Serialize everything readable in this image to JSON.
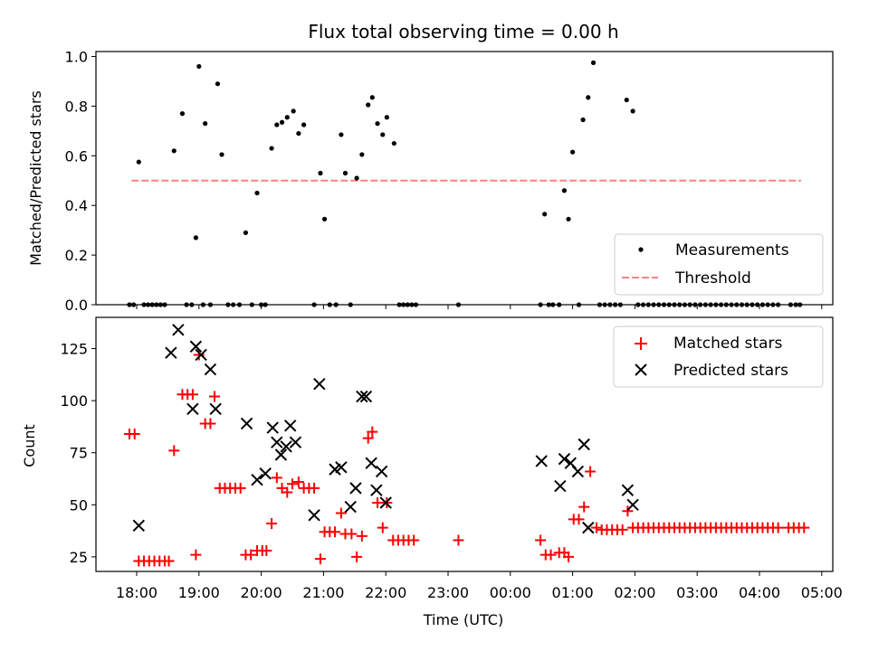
{
  "figure": {
    "title": "Flux total observing time = 0.00 h",
    "colors": {
      "measure": "#000000",
      "threshold": "#ff8080",
      "matched": "#ff0000",
      "predicted": "#000000"
    }
  },
  "chart_data": [
    {
      "type": "scatter",
      "title": "Flux total observing time = 0.00 h",
      "xlabel": "",
      "ylabel": "Matched/Predicted stars",
      "ylim": [
        0,
        1.02
      ],
      "yticks": [
        0.0,
        0.2,
        0.4,
        0.6,
        0.8,
        1.0
      ],
      "xticks": [
        "18:00",
        "19:00",
        "20:00",
        "21:00",
        "22:00",
        "23:00",
        "00:00",
        "01:00",
        "02:00",
        "03:00",
        "04:00",
        "05:00"
      ],
      "legend_position": "bottom-right",
      "legend": [
        "Measurements",
        "Threshold"
      ],
      "threshold": {
        "name": "Threshold",
        "value": 0.5,
        "x_start": "17:55",
        "x_end": "04:40"
      },
      "series": [
        {
          "name": "Measurements",
          "points": [
            [
              "17:53",
              0
            ],
            [
              "17:57",
              0
            ],
            [
              "18:02",
              0.575
            ],
            [
              "18:07",
              0
            ],
            [
              "18:11",
              0
            ],
            [
              "18:15",
              0
            ],
            [
              "18:19",
              0
            ],
            [
              "18:23",
              0
            ],
            [
              "18:27",
              0
            ],
            [
              "18:36",
              0.62
            ],
            [
              "18:44",
              0.77
            ],
            [
              "18:48",
              0
            ],
            [
              "18:53",
              0
            ],
            [
              "18:57",
              0.27
            ],
            [
              "19:00",
              0.96
            ],
            [
              "19:04",
              0
            ],
            [
              "19:06",
              0.73
            ],
            [
              "19:11",
              0
            ],
            [
              "19:18",
              0.89
            ],
            [
              "19:22",
              0.605
            ],
            [
              "19:28",
              0
            ],
            [
              "19:33",
              0
            ],
            [
              "19:39",
              0
            ],
            [
              "19:45",
              0.29
            ],
            [
              "19:51",
              0
            ],
            [
              "19:56",
              0.45
            ],
            [
              "20:00",
              0
            ],
            [
              "20:04",
              0
            ],
            [
              "20:10",
              0.63
            ],
            [
              "20:15",
              0.725
            ],
            [
              "20:20",
              0.735
            ],
            [
              "20:25",
              0.755
            ],
            [
              "20:31",
              0.78
            ],
            [
              "20:36",
              0.69
            ],
            [
              "20:41",
              0.725
            ],
            [
              "20:51",
              0
            ],
            [
              "20:57",
              0.53
            ],
            [
              "21:01",
              0.345
            ],
            [
              "21:06",
              0
            ],
            [
              "21:12",
              0
            ],
            [
              "21:17",
              0.685
            ],
            [
              "21:21",
              0.53
            ],
            [
              "21:26",
              0
            ],
            [
              "21:32",
              0.51
            ],
            [
              "21:37",
              0.605
            ],
            [
              "21:43",
              0.805
            ],
            [
              "21:47",
              0.835
            ],
            [
              "21:52",
              0.73
            ],
            [
              "21:57",
              0.685
            ],
            [
              "22:01",
              0.755
            ],
            [
              "22:08",
              0.65
            ],
            [
              "22:13",
              0
            ],
            [
              "22:17",
              0
            ],
            [
              "22:21",
              0
            ],
            [
              "22:25",
              0
            ],
            [
              "22:29",
              0
            ],
            [
              "23:10",
              0
            ],
            [
              "00:29",
              0
            ],
            [
              "00:33",
              0.365
            ],
            [
              "00:37",
              0
            ],
            [
              "00:41",
              0
            ],
            [
              "00:47",
              0
            ],
            [
              "00:52",
              0.46
            ],
            [
              "00:56",
              0.345
            ],
            [
              "01:00",
              0.615
            ],
            [
              "01:06",
              0
            ],
            [
              "01:10",
              0.745
            ],
            [
              "01:15",
              0.835
            ],
            [
              "01:20",
              0.975
            ],
            [
              "01:26",
              0
            ],
            [
              "01:31",
              0
            ],
            [
              "01:36",
              0
            ],
            [
              "01:41",
              0
            ],
            [
              "01:46",
              0
            ],
            [
              "01:52",
              0.825
            ],
            [
              "01:58",
              0.78
            ],
            [
              "02:03",
              0
            ],
            [
              "02:08",
              0
            ],
            [
              "02:13",
              0
            ],
            [
              "02:18",
              0
            ],
            [
              "02:23",
              0
            ],
            [
              "02:28",
              0
            ],
            [
              "02:33",
              0
            ],
            [
              "02:38",
              0
            ],
            [
              "02:43",
              0
            ],
            [
              "02:48",
              0
            ],
            [
              "02:53",
              0
            ],
            [
              "02:58",
              0
            ],
            [
              "03:03",
              0
            ],
            [
              "03:08",
              0
            ],
            [
              "03:13",
              0
            ],
            [
              "03:18",
              0
            ],
            [
              "03:23",
              0
            ],
            [
              "03:28",
              0
            ],
            [
              "03:33",
              0
            ],
            [
              "03:38",
              0
            ],
            [
              "03:43",
              0
            ],
            [
              "03:48",
              0
            ],
            [
              "03:53",
              0
            ],
            [
              "03:58",
              0
            ],
            [
              "04:03",
              0
            ],
            [
              "04:08",
              0
            ],
            [
              "04:13",
              0
            ],
            [
              "04:18",
              0
            ],
            [
              "04:30",
              0
            ],
            [
              "04:35",
              0
            ],
            [
              "04:39",
              0
            ]
          ]
        }
      ]
    },
    {
      "type": "scatter",
      "xlabel": "Time (UTC)",
      "ylabel": "Count",
      "ylim": [
        18,
        140
      ],
      "yticks": [
        25,
        50,
        75,
        100,
        125
      ],
      "xticks": [
        "18:00",
        "19:00",
        "20:00",
        "21:00",
        "22:00",
        "23:00",
        "00:00",
        "01:00",
        "02:00",
        "03:00",
        "04:00",
        "05:00"
      ],
      "legend_position": "top-right",
      "legend": [
        "Matched stars",
        "Predicted stars"
      ],
      "series": [
        {
          "name": "Matched stars",
          "marker": "+",
          "points": [
            [
              "17:53",
              84
            ],
            [
              "17:58",
              84
            ],
            [
              "18:02",
              23
            ],
            [
              "18:07",
              23
            ],
            [
              "18:12",
              23
            ],
            [
              "18:17",
              23
            ],
            [
              "18:22",
              23
            ],
            [
              "18:27",
              23
            ],
            [
              "18:31",
              23
            ],
            [
              "18:36",
              76
            ],
            [
              "18:44",
              103
            ],
            [
              "18:49",
              103
            ],
            [
              "18:54",
              103
            ],
            [
              "18:57",
              26
            ],
            [
              "19:00",
              122
            ],
            [
              "19:06",
              89
            ],
            [
              "19:11",
              89
            ],
            [
              "19:15",
              102
            ],
            [
              "19:20",
              58
            ],
            [
              "19:25",
              58
            ],
            [
              "19:30",
              58
            ],
            [
              "19:35",
              58
            ],
            [
              "19:40",
              58
            ],
            [
              "19:45",
              26
            ],
            [
              "19:50",
              26
            ],
            [
              "19:56",
              28
            ],
            [
              "20:01",
              28
            ],
            [
              "20:05",
              28
            ],
            [
              "20:10",
              41
            ],
            [
              "20:15",
              63
            ],
            [
              "20:20",
              58
            ],
            [
              "20:25",
              56
            ],
            [
              "20:30",
              60
            ],
            [
              "20:36",
              61
            ],
            [
              "20:41",
              58
            ],
            [
              "20:46",
              58
            ],
            [
              "20:51",
              58
            ],
            [
              "20:57",
              24
            ],
            [
              "21:01",
              37
            ],
            [
              "21:06",
              37
            ],
            [
              "21:11",
              37
            ],
            [
              "21:17",
              46
            ],
            [
              "21:21",
              36
            ],
            [
              "21:27",
              36
            ],
            [
              "21:32",
              25
            ],
            [
              "21:37",
              35
            ],
            [
              "21:43",
              82
            ],
            [
              "21:47",
              85
            ],
            [
              "21:52",
              51
            ],
            [
              "21:57",
              39
            ],
            [
              "22:01",
              51
            ],
            [
              "22:07",
              33
            ],
            [
              "22:12",
              33
            ],
            [
              "22:17",
              33
            ],
            [
              "22:22",
              33
            ],
            [
              "22:27",
              33
            ],
            [
              "23:10",
              33
            ],
            [
              "00:29",
              33
            ],
            [
              "00:34",
              26
            ],
            [
              "00:39",
              26
            ],
            [
              "00:47",
              27
            ],
            [
              "00:52",
              27
            ],
            [
              "00:56",
              25
            ],
            [
              "01:01",
              43
            ],
            [
              "01:06",
              43
            ],
            [
              "01:11",
              49
            ],
            [
              "01:17",
              66
            ],
            [
              "01:23",
              39
            ],
            [
              "01:28",
              38
            ],
            [
              "01:33",
              38
            ],
            [
              "01:38",
              38
            ],
            [
              "01:43",
              38
            ],
            [
              "01:48",
              38
            ],
            [
              "01:53",
              47
            ],
            [
              "01:58",
              39
            ],
            [
              "02:03",
              39
            ],
            [
              "02:08",
              39
            ],
            [
              "02:13",
              39
            ],
            [
              "02:18",
              39
            ],
            [
              "02:23",
              39
            ],
            [
              "02:28",
              39
            ],
            [
              "02:33",
              39
            ],
            [
              "02:38",
              39
            ],
            [
              "02:43",
              39
            ],
            [
              "02:48",
              39
            ],
            [
              "02:53",
              39
            ],
            [
              "02:58",
              39
            ],
            [
              "03:03",
              39
            ],
            [
              "03:08",
              39
            ],
            [
              "03:13",
              39
            ],
            [
              "03:18",
              39
            ],
            [
              "03:23",
              39
            ],
            [
              "03:28",
              39
            ],
            [
              "03:33",
              39
            ],
            [
              "03:38",
              39
            ],
            [
              "03:43",
              39
            ],
            [
              "03:48",
              39
            ],
            [
              "03:53",
              39
            ],
            [
              "03:58",
              39
            ],
            [
              "04:03",
              39
            ],
            [
              "04:08",
              39
            ],
            [
              "04:13",
              39
            ],
            [
              "04:18",
              39
            ],
            [
              "04:28",
              39
            ],
            [
              "04:33",
              39
            ],
            [
              "04:38",
              39
            ],
            [
              "04:43",
              39
            ]
          ]
        },
        {
          "name": "Predicted stars",
          "marker": "x",
          "points": [
            [
              "18:02",
              40
            ],
            [
              "18:33",
              123
            ],
            [
              "18:40",
              134
            ],
            [
              "18:54",
              96
            ],
            [
              "18:57",
              126
            ],
            [
              "19:02",
              122
            ],
            [
              "19:11",
              115
            ],
            [
              "19:16",
              96
            ],
            [
              "19:46",
              89
            ],
            [
              "19:56",
              62
            ],
            [
              "20:04",
              65
            ],
            [
              "20:11",
              87
            ],
            [
              "20:15",
              80
            ],
            [
              "20:19",
              74
            ],
            [
              "20:24",
              78
            ],
            [
              "20:28",
              88
            ],
            [
              "20:33",
              80
            ],
            [
              "20:51",
              45
            ],
            [
              "20:56",
              108
            ],
            [
              "21:11",
              67
            ],
            [
              "21:17",
              68
            ],
            [
              "21:26",
              49
            ],
            [
              "21:31",
              58
            ],
            [
              "21:37",
              102
            ],
            [
              "21:41",
              102
            ],
            [
              "21:46",
              70
            ],
            [
              "21:51",
              57
            ],
            [
              "21:56",
              66
            ],
            [
              "22:00",
              51
            ],
            [
              "00:30",
              71
            ],
            [
              "00:48",
              59
            ],
            [
              "00:52",
              72
            ],
            [
              "00:58",
              70
            ],
            [
              "01:05",
              66
            ],
            [
              "01:11",
              79
            ],
            [
              "01:15",
              39
            ],
            [
              "01:53",
              57
            ],
            [
              "01:58",
              50
            ]
          ]
        }
      ]
    }
  ]
}
